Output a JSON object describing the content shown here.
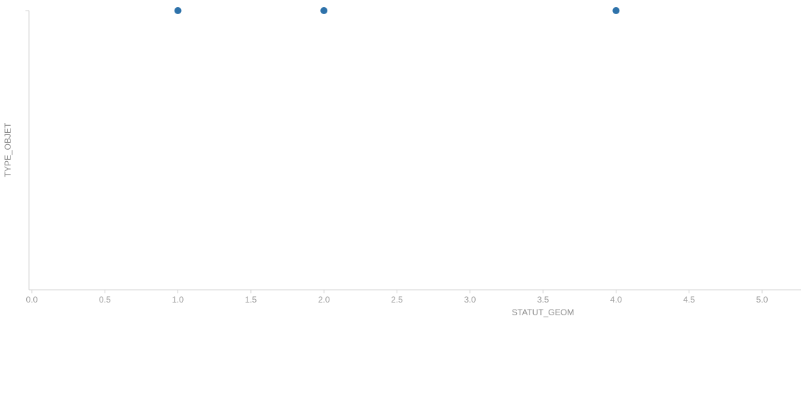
{
  "chart_data": {
    "type": "scatter",
    "xlabel": "STATUT_GEOM",
    "ylabel": "TYPE_OBJET",
    "xlim": [
      0,
      5.25
    ],
    "x_ticks": [
      "0.0",
      "0.5",
      "1.0",
      "1.5",
      "2.0",
      "2.5",
      "3.0",
      "3.5",
      "4.0",
      "4.5",
      "5.0"
    ],
    "grid": false,
    "legend": "none",
    "color": "#2e72aa",
    "points": [
      {
        "x": 1.0
      },
      {
        "x": 2.0
      },
      {
        "x": 4.0
      }
    ]
  }
}
